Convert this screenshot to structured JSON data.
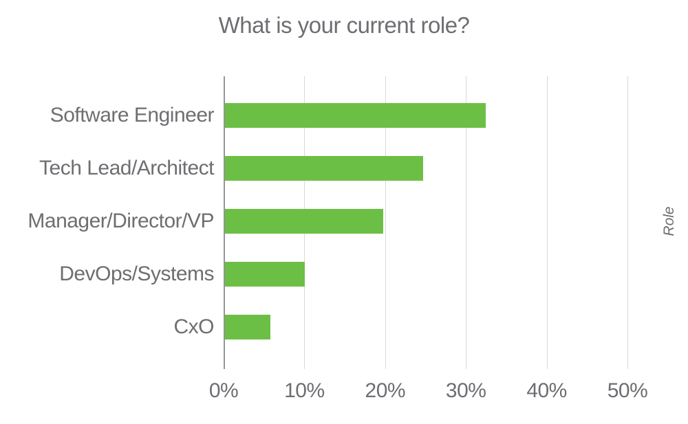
{
  "chart_data": {
    "type": "bar",
    "orientation": "horizontal",
    "title": "What is your current role?",
    "categories": [
      "Software Engineer",
      "Tech Lead/Architect",
      "Manager/Director/VP",
      "DevOps/Systems",
      "CxO"
    ],
    "values": [
      32.3,
      24.5,
      19.6,
      9.9,
      5.6
    ],
    "value_unit": "%",
    "xlabel": "",
    "ylabel": "Role",
    "x_tick_labels": [
      "0%",
      "10%",
      "20%",
      "30%",
      "40%",
      "50%"
    ],
    "x_tick_values": [
      0,
      10,
      20,
      30,
      40,
      50
    ],
    "xlim": [
      0,
      50
    ],
    "grid": true,
    "legend": false,
    "colors": {
      "bar": "#6CBF45",
      "text": "#6D6E71",
      "gridline": "#D8D9DA",
      "zero_axis": "#939598",
      "background": "#FFFFFF"
    }
  }
}
